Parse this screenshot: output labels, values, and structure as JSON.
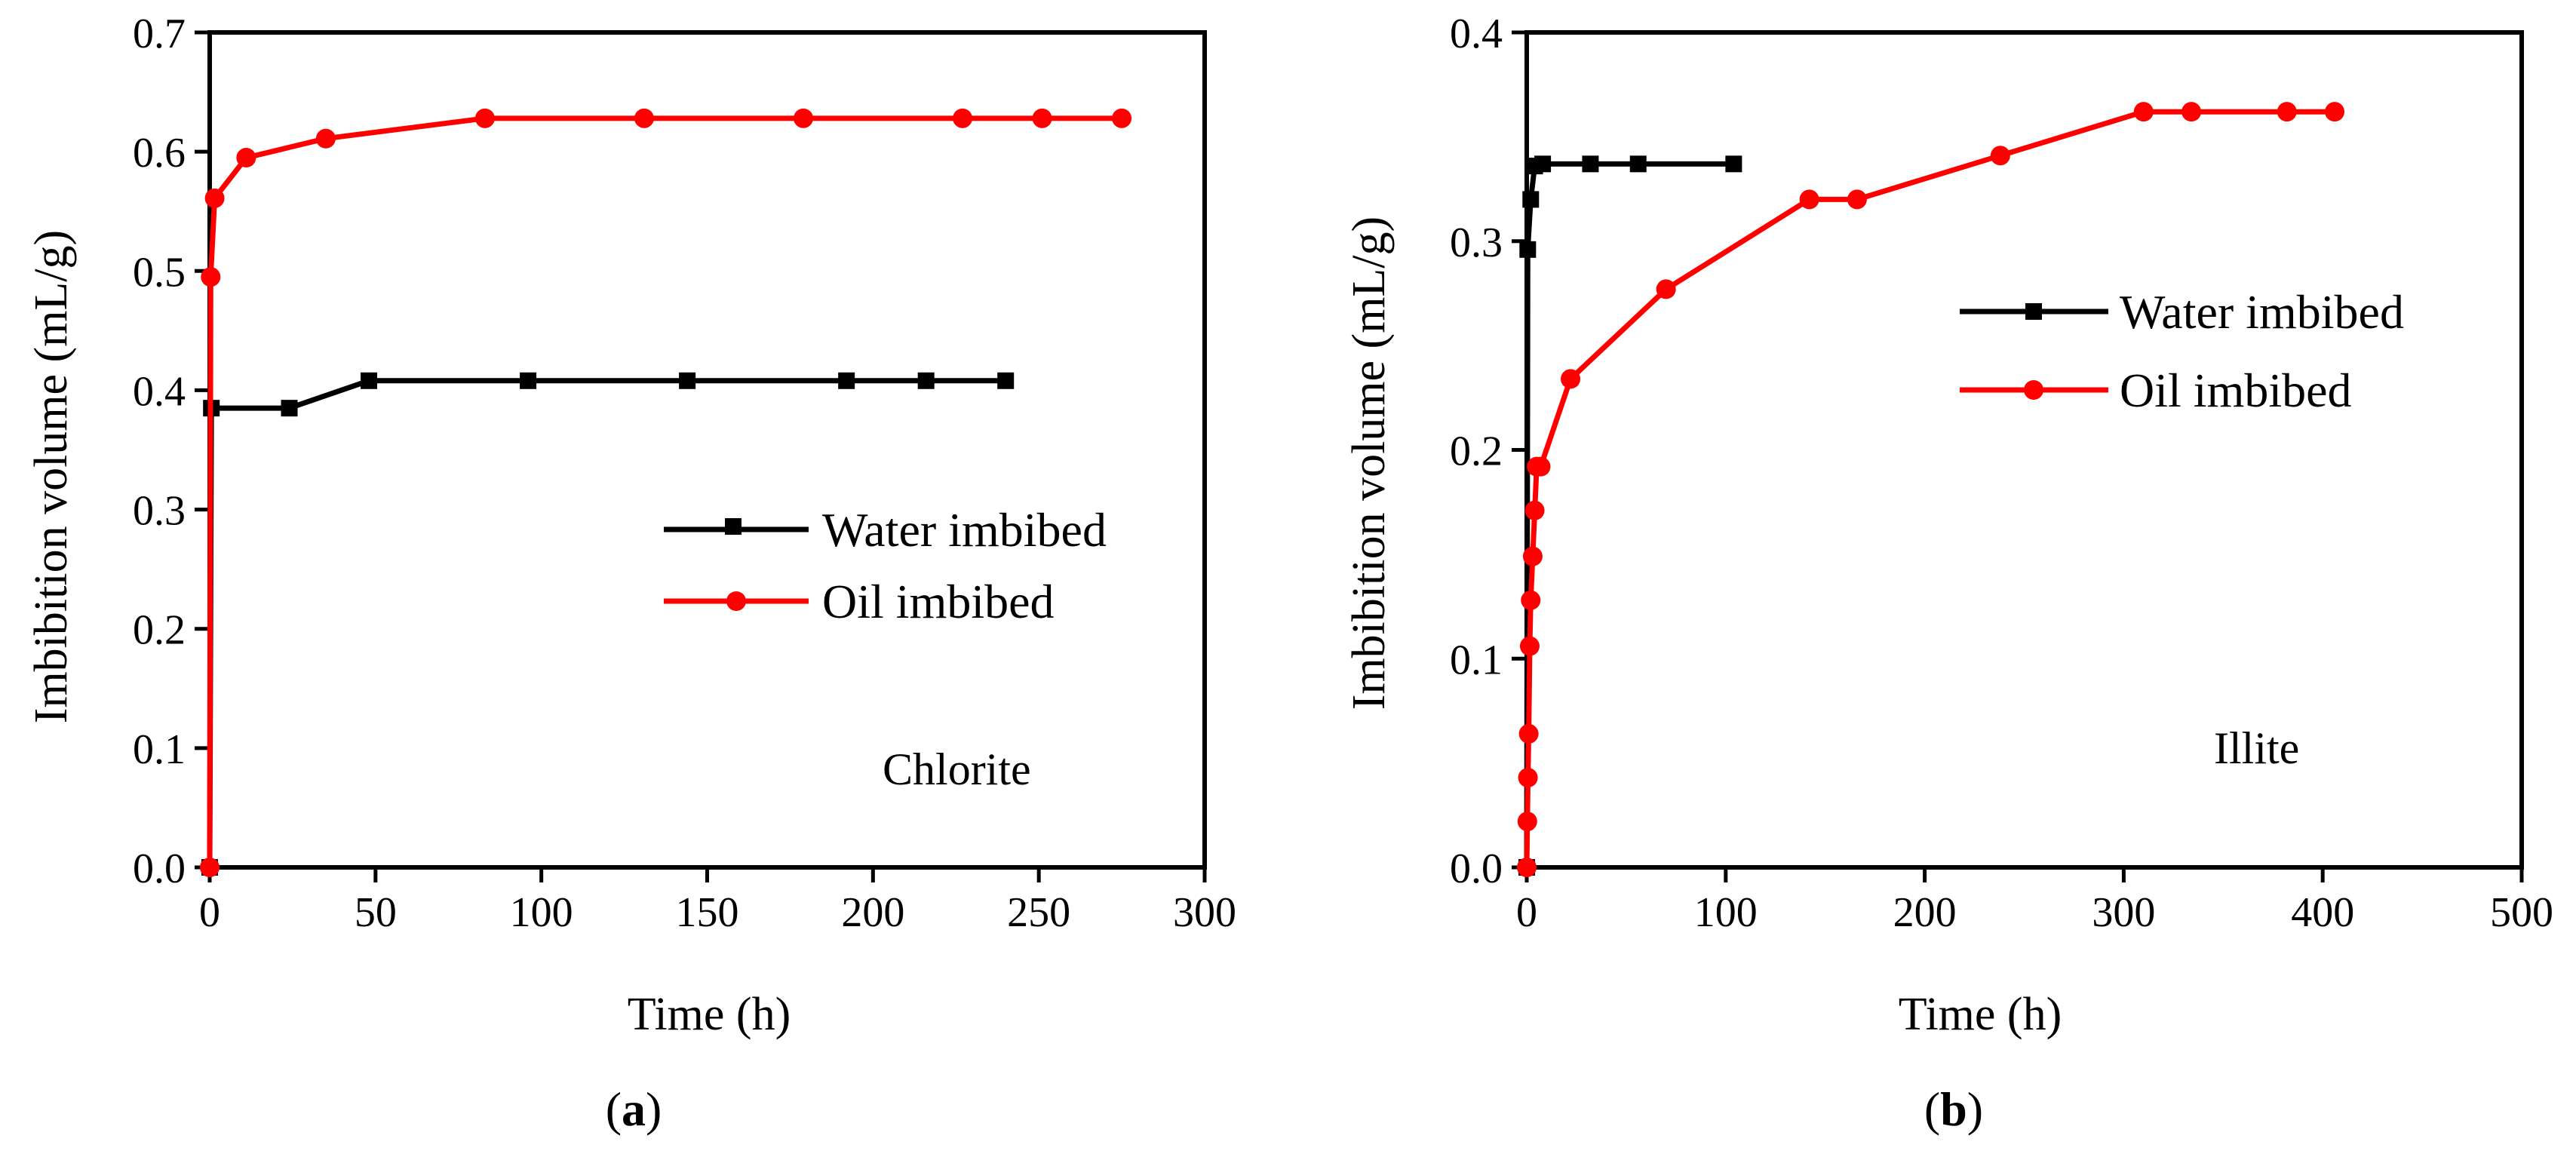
{
  "colors": {
    "water": "#000000",
    "oil": "#ff0000",
    "axis": "#000000"
  },
  "chart_data": [
    {
      "type": "line",
      "panel_label": {
        "open": "(",
        "letter": "a",
        "close": ")"
      },
      "annotation": "Chlorite",
      "xlabel": "Time (h)",
      "ylabel": "Imbibition volume (mL/g)",
      "xlim": [
        0,
        300
      ],
      "ylim": [
        0,
        0.7
      ],
      "xticks": [
        0,
        50,
        100,
        150,
        200,
        250,
        300
      ],
      "xtick_labels": [
        "0",
        "50",
        "100",
        "150",
        "200",
        "250",
        "300"
      ],
      "yticks": [
        0,
        0.1,
        0.2,
        0.3,
        0.4,
        0.5,
        0.6,
        0.7
      ],
      "ytick_labels": [
        "0.0",
        "0.1",
        "0.2",
        "0.3",
        "0.4",
        "0.5",
        "0.6",
        "0.7"
      ],
      "legend_position": "center-right",
      "series": [
        {
          "name": "Water imbibed",
          "marker": "square",
          "color": "#000000",
          "x": [
            0,
            0.5,
            24,
            48,
            96,
            144,
            192,
            216,
            240
          ],
          "y": [
            0,
            0.385,
            0.385,
            0.408,
            0.408,
            0.408,
            0.408,
            0.408,
            0.408
          ]
        },
        {
          "name": "Oil imbibed",
          "marker": "circle",
          "color": "#ff0000",
          "x": [
            0,
            0.3,
            1.5,
            11,
            35,
            83,
            131,
            179,
            227,
            251,
            275
          ],
          "y": [
            0,
            0.495,
            0.561,
            0.595,
            0.611,
            0.628,
            0.628,
            0.628,
            0.628,
            0.628,
            0.628
          ]
        }
      ]
    },
    {
      "type": "line",
      "panel_label": {
        "open": "(",
        "letter": "b",
        "close": ")"
      },
      "annotation": "Illite",
      "xlabel": "Time (h)",
      "ylabel": "Imbibition volume (mL/g)",
      "xlim": [
        0,
        500
      ],
      "ylim": [
        0,
        0.4
      ],
      "xticks": [
        0,
        100,
        200,
        300,
        400,
        500
      ],
      "xtick_labels": [
        "0",
        "100",
        "200",
        "300",
        "400",
        "500"
      ],
      "yticks": [
        0,
        0.1,
        0.2,
        0.3,
        0.4
      ],
      "ytick_labels": [
        "0.0",
        "0.1",
        "0.2",
        "0.3",
        "0.4"
      ],
      "legend_position": "top-right",
      "series": [
        {
          "name": "Water imbibed",
          "marker": "square",
          "color": "#000000",
          "x": [
            0,
            0.5,
            2,
            4,
            8,
            32,
            56,
            104
          ],
          "y": [
            0,
            0.296,
            0.32,
            0.336,
            0.337,
            0.337,
            0.337,
            0.337
          ]
        },
        {
          "name": "Oil imbibed",
          "marker": "circle",
          "color": "#ff0000",
          "x": [
            0,
            0.3,
            0.6,
            1,
            1.5,
            2,
            3,
            4,
            5,
            7,
            22,
            70,
            142,
            166,
            238,
            310,
            334,
            382,
            406
          ],
          "y": [
            0,
            0.022,
            0.043,
            0.064,
            0.106,
            0.128,
            0.149,
            0.171,
            0.192,
            0.192,
            0.234,
            0.277,
            0.32,
            0.32,
            0.341,
            0.362,
            0.362,
            0.362,
            0.362
          ]
        }
      ]
    }
  ]
}
